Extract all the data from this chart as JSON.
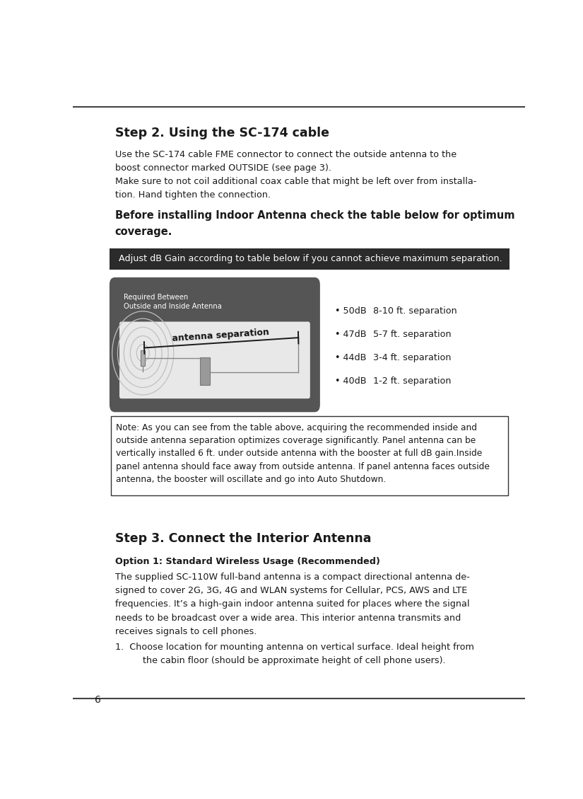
{
  "page_number": "6",
  "bg_color": "#ffffff",
  "step2_title": "Step 2. Using the SC-174 cable",
  "body1_lines": [
    "Use the SC-174 cable FME connector to connect the outside antenna to the",
    "boost connector marked OUTSIDE (see page 3).",
    "Make sure to not coil additional coax cable that might be left over from installa-",
    "tion. Hand tighten the connection."
  ],
  "bold_lines": [
    "Before installing Indoor Antenna check the table below for optimum",
    "coverage."
  ],
  "banner_text": "  Adjust dB Gain according to table below if you cannot achieve maximum separation.",
  "banner_bg": "#2b2b2b",
  "banner_fg": "#ffffff",
  "diagram_box_bg": "#555555",
  "diagram_inner_bg": "#e8e8e8",
  "diagram_label_title1": "Required Between",
  "diagram_label_title2": "Outside and Inside Antenna",
  "diagram_sep_label": "antenna separation",
  "bullet_items": [
    {
      "db": "50dB",
      "sep": "8-10 ft. separation"
    },
    {
      "db": "47dB",
      "sep": "5-7 ft. separation"
    },
    {
      "db": "44dB",
      "sep": "3-4 ft. separation"
    },
    {
      "db": "40dB",
      "sep": "1-2 ft. separation"
    }
  ],
  "note_lines": [
    "Note: As you can see from the table above, acquiring the recommended inside and",
    "outside antenna separation optimizes coverage significantly. Panel antenna can be",
    "vertically installed 6 ft. under outside antenna with the booster at full dB gain.Inside",
    "panel antenna should face away from outside antenna. If panel antenna faces outside",
    "antenna, the booster will oscillate and go into Auto Shutdown."
  ],
  "step3_title": "Step 3. Connect the Interior Antenna",
  "option1_title": "Option 1: Standard Wireless Usage (Recommended)",
  "option1_body_lines": [
    "The supplied SC-110W full-band antenna is a compact directional antenna de-",
    "signed to cover 2G, 3G, 4G and WLAN systems for Cellular, PCS, AWS and LTE",
    "frequencies. It’s a high-gain indoor antenna suited for places where the signal",
    "needs to be broadcast over a wide area. This interior antenna transmits and",
    "receives signals to cell phones."
  ],
  "step1_line1": "1.  Choose location for mounting antenna on vertical surface. Ideal height from",
  "step1_line2": "     the cabin floor (should be approximate height of cell phone users).",
  "ml": 0.093,
  "mr": 0.955,
  "text_color": "#1a1a1a",
  "body_fs": 9.2,
  "title_fs": 12.5,
  "bold_fs": 10.5,
  "banner_fs": 9.2,
  "note_fs": 8.8,
  "bullet_fs": 9.2
}
